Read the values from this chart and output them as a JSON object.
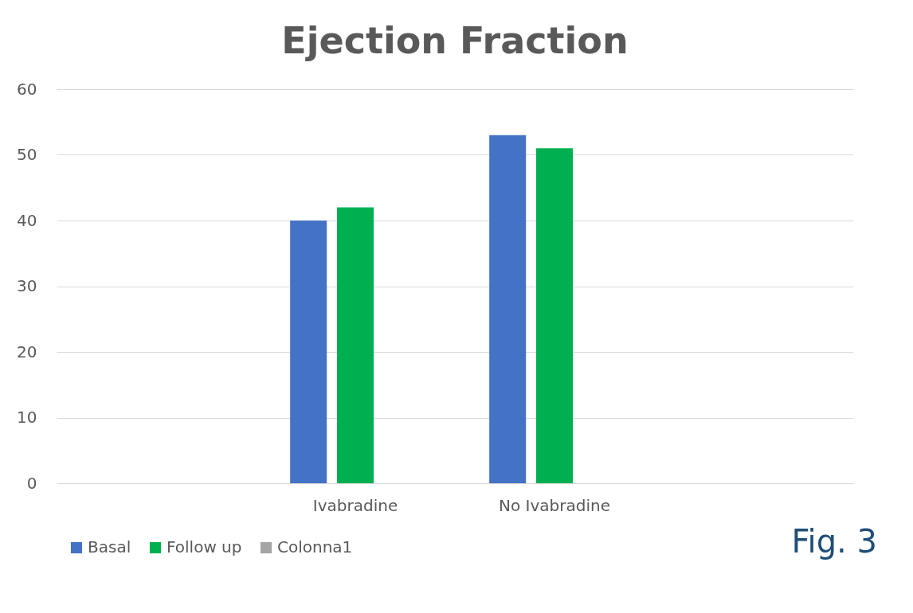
{
  "chart_data": {
    "type": "bar",
    "title": "Ejection Fraction",
    "categories": [
      null,
      "Ivabradine",
      "No Ivabradine",
      null
    ],
    "series": [
      {
        "name": "Basal",
        "color": "#4472c4",
        "values": [
          null,
          40,
          53,
          null
        ]
      },
      {
        "name": "Follow up",
        "color": "#00b050",
        "values": [
          null,
          42,
          51,
          null
        ]
      },
      {
        "name": "Colonna1",
        "color": "#a5a5a5",
        "values": [
          null,
          null,
          null,
          null
        ]
      }
    ],
    "ylim": [
      0,
      60
    ],
    "yticks": [
      0,
      10,
      20,
      30,
      40,
      50,
      60
    ],
    "grid": "y",
    "legend": "bottom",
    "annotations": [
      "Fig. 3"
    ]
  }
}
